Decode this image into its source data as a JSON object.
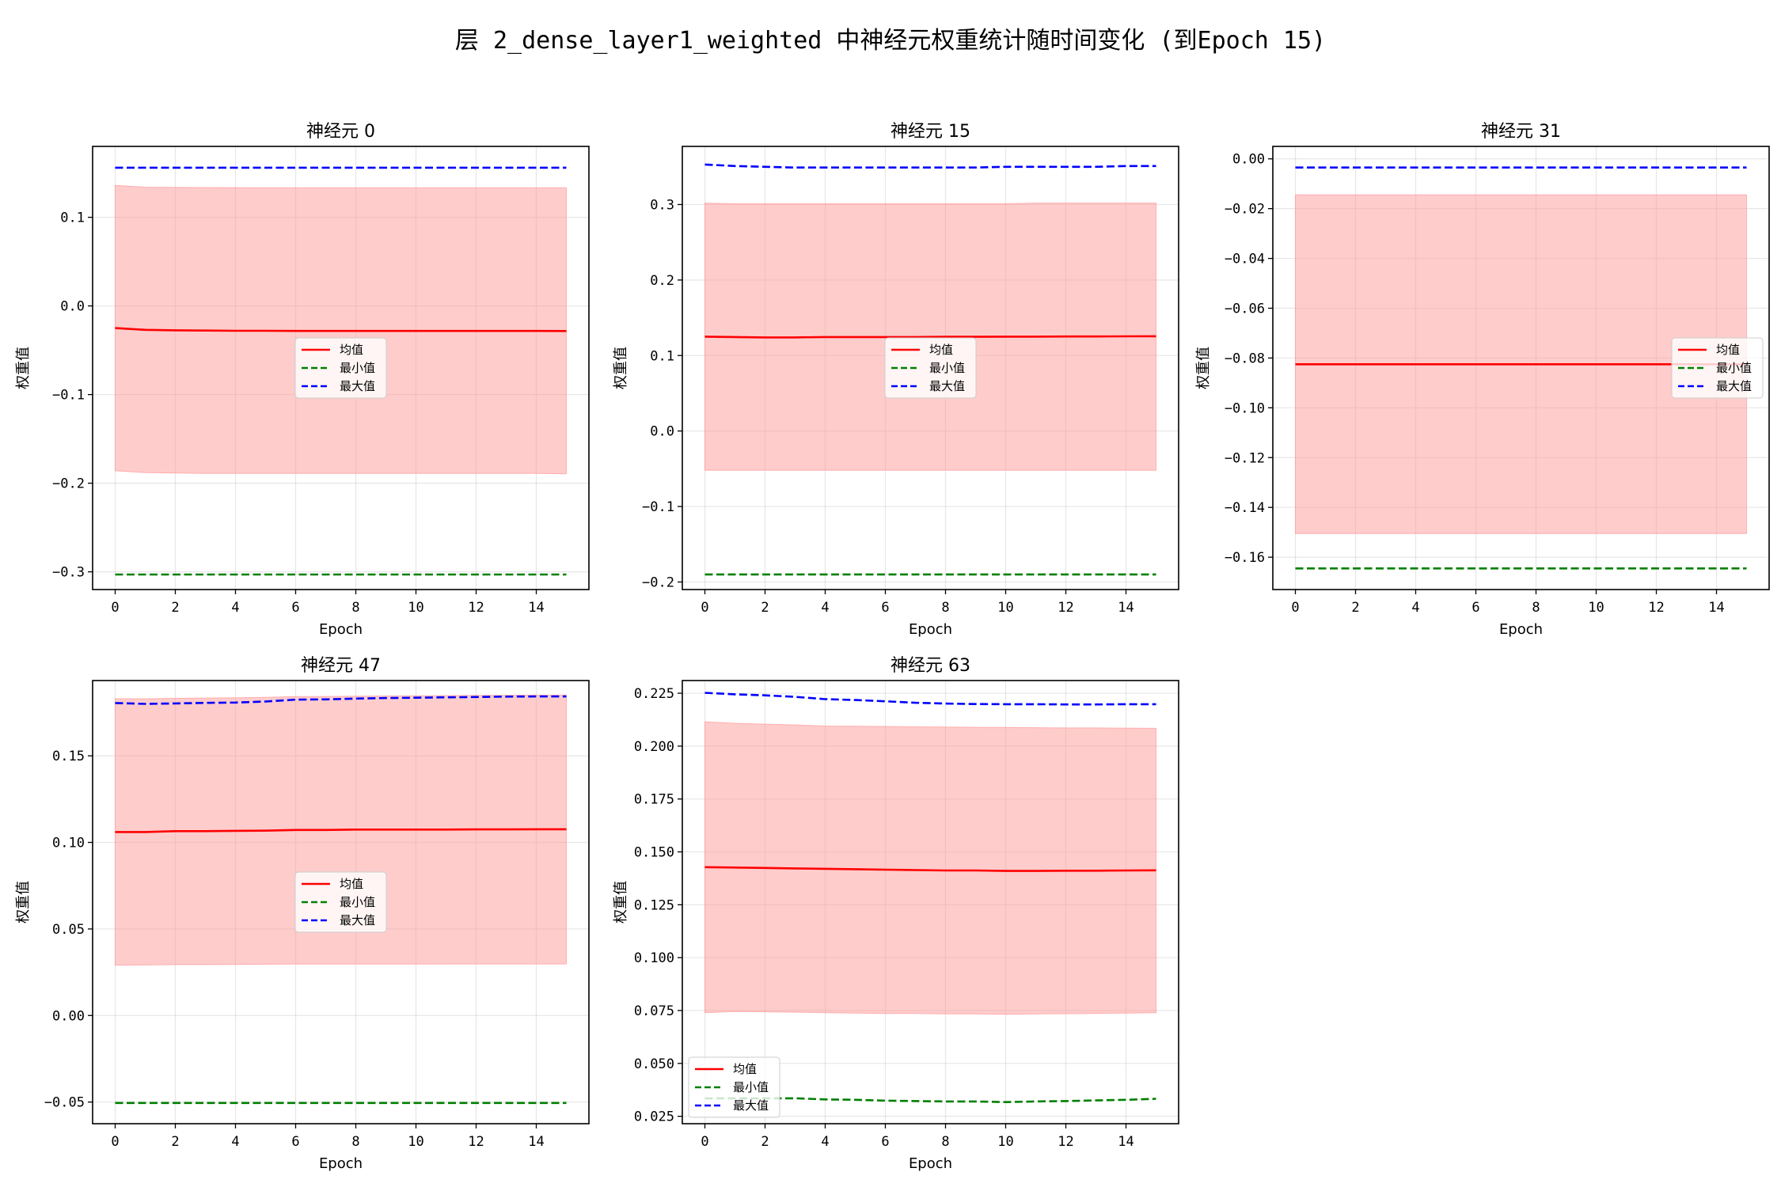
{
  "suptitle": "层 2_dense_layer1_weighted 中神经元权重统计随时间变化 (到Epoch 15)",
  "colors": {
    "mean": "#ff0000",
    "min": "#008000",
    "max": "#0000ff",
    "band": "#ff9999"
  },
  "chart_data": [
    {
      "type": "line",
      "title": "神经元 0",
      "xlabel": "Epoch",
      "ylabel": "权重值",
      "x": [
        0,
        1,
        2,
        3,
        4,
        5,
        6,
        7,
        8,
        9,
        10,
        11,
        12,
        13,
        14,
        15
      ],
      "xlim": [
        -0.75,
        15.75
      ],
      "xticks": [
        0,
        2,
        4,
        6,
        8,
        10,
        12,
        14
      ],
      "ylim": [
        -0.32,
        0.18
      ],
      "yticks": [
        -0.3,
        -0.2,
        -0.1,
        0.0,
        0.1
      ],
      "ytick_labels": [
        "−0.3",
        "−0.2",
        "−0.1",
        "0.0",
        "0.1"
      ],
      "grid": true,
      "legend_loc": "center",
      "series": [
        {
          "name": "均值",
          "style": "solid",
          "color": "#ff0000",
          "values": [
            -0.025,
            -0.027,
            -0.0275,
            -0.0278,
            -0.028,
            -0.028,
            -0.0282,
            -0.0282,
            -0.0282,
            -0.0282,
            -0.0282,
            -0.0282,
            -0.0282,
            -0.0282,
            -0.0282,
            -0.0283
          ]
        },
        {
          "name": "最小值",
          "style": "dashed",
          "color": "#008000",
          "values": [
            -0.303,
            -0.303,
            -0.303,
            -0.303,
            -0.303,
            -0.303,
            -0.303,
            -0.303,
            -0.303,
            -0.303,
            -0.303,
            -0.303,
            -0.303,
            -0.303,
            -0.303,
            -0.303
          ]
        },
        {
          "name": "最大值",
          "style": "dashed",
          "color": "#0000ff",
          "values": [
            0.156,
            0.156,
            0.156,
            0.156,
            0.156,
            0.156,
            0.156,
            0.156,
            0.156,
            0.156,
            0.156,
            0.156,
            0.156,
            0.156,
            0.156,
            0.156
          ]
        }
      ],
      "band": {
        "upper": [
          0.136,
          0.134,
          0.1338,
          0.1336,
          0.1335,
          0.1334,
          0.1334,
          0.1334,
          0.1334,
          0.1334,
          0.1334,
          0.1334,
          0.1334,
          0.1334,
          0.1334,
          0.1333
        ],
        "lower": [
          -0.186,
          -0.188,
          -0.1885,
          -0.189,
          -0.189,
          -0.189,
          -0.189,
          -0.189,
          -0.189,
          -0.189,
          -0.189,
          -0.189,
          -0.189,
          -0.189,
          -0.189,
          -0.1895
        ]
      }
    },
    {
      "type": "line",
      "title": "神经元 15",
      "xlabel": "Epoch",
      "ylabel": "权重值",
      "x": [
        0,
        1,
        2,
        3,
        4,
        5,
        6,
        7,
        8,
        9,
        10,
        11,
        12,
        13,
        14,
        15
      ],
      "xlim": [
        -0.75,
        15.75
      ],
      "xticks": [
        0,
        2,
        4,
        6,
        8,
        10,
        12,
        14
      ],
      "ylim": [
        -0.21,
        0.377
      ],
      "yticks": [
        -0.2,
        -0.1,
        0.0,
        0.1,
        0.2,
        0.3
      ],
      "ytick_labels": [
        "−0.2",
        "−0.1",
        "0.0",
        "0.1",
        "0.2",
        "0.3"
      ],
      "grid": true,
      "legend_loc": "center",
      "series": [
        {
          "name": "均值",
          "style": "solid",
          "color": "#ff0000",
          "values": [
            0.125,
            0.1245,
            0.124,
            0.124,
            0.1245,
            0.1245,
            0.1245,
            0.1245,
            0.1248,
            0.1248,
            0.125,
            0.125,
            0.1252,
            0.1252,
            0.1254,
            0.1255
          ]
        },
        {
          "name": "最小值",
          "style": "dashed",
          "color": "#008000",
          "values": [
            -0.19,
            -0.19,
            -0.19,
            -0.19,
            -0.19,
            -0.19,
            -0.19,
            -0.19,
            -0.19,
            -0.19,
            -0.19,
            -0.19,
            -0.19,
            -0.19,
            -0.19,
            -0.19
          ]
        },
        {
          "name": "最大值",
          "style": "dashed",
          "color": "#0000ff",
          "values": [
            0.353,
            0.351,
            0.35,
            0.349,
            0.349,
            0.349,
            0.349,
            0.349,
            0.349,
            0.349,
            0.35,
            0.35,
            0.35,
            0.35,
            0.351,
            0.351
          ]
        }
      ],
      "band": {
        "upper": [
          0.302,
          0.301,
          0.301,
          0.301,
          0.301,
          0.301,
          0.301,
          0.301,
          0.301,
          0.301,
          0.301,
          0.302,
          0.302,
          0.302,
          0.302,
          0.302
        ],
        "lower": [
          -0.052,
          -0.052,
          -0.052,
          -0.052,
          -0.052,
          -0.052,
          -0.052,
          -0.052,
          -0.052,
          -0.052,
          -0.052,
          -0.052,
          -0.052,
          -0.052,
          -0.052,
          -0.052
        ]
      }
    },
    {
      "type": "line",
      "title": "神经元 31",
      "xlabel": "Epoch",
      "ylabel": "权重值",
      "x": [
        0,
        1,
        2,
        3,
        4,
        5,
        6,
        7,
        8,
        9,
        10,
        11,
        12,
        13,
        14,
        15
      ],
      "xlim": [
        -0.75,
        15.75
      ],
      "xticks": [
        0,
        2,
        4,
        6,
        8,
        10,
        12,
        14
      ],
      "ylim": [
        -0.173,
        0.005
      ],
      "yticks": [
        -0.16,
        -0.14,
        -0.12,
        -0.1,
        -0.08,
        -0.06,
        -0.04,
        -0.02,
        0.0
      ],
      "ytick_labels": [
        "−0.16",
        "−0.14",
        "−0.12",
        "−0.10",
        "−0.08",
        "−0.06",
        "−0.04",
        "−0.02",
        "0.00"
      ],
      "grid": true,
      "legend_loc": "center right",
      "series": [
        {
          "name": "均值",
          "style": "solid",
          "color": "#ff0000",
          "values": [
            -0.0825,
            -0.0825,
            -0.0825,
            -0.0825,
            -0.0825,
            -0.0825,
            -0.0825,
            -0.0825,
            -0.0825,
            -0.0825,
            -0.0825,
            -0.0825,
            -0.0825,
            -0.0825,
            -0.0825,
            -0.0825
          ]
        },
        {
          "name": "最小值",
          "style": "dashed",
          "color": "#008000",
          "values": [
            -0.1645,
            -0.1645,
            -0.1645,
            -0.1645,
            -0.1645,
            -0.1645,
            -0.1645,
            -0.1645,
            -0.1645,
            -0.1645,
            -0.1645,
            -0.1645,
            -0.1645,
            -0.1645,
            -0.1645,
            -0.1645
          ]
        },
        {
          "name": "最大值",
          "style": "dashed",
          "color": "#0000ff",
          "values": [
            -0.0035,
            -0.0035,
            -0.0035,
            -0.0035,
            -0.0035,
            -0.0035,
            -0.0035,
            -0.0035,
            -0.0035,
            -0.0035,
            -0.0035,
            -0.0035,
            -0.0035,
            -0.0035,
            -0.0035,
            -0.0035
          ]
        }
      ],
      "band": {
        "upper": [
          -0.0145,
          -0.0145,
          -0.0145,
          -0.0145,
          -0.0145,
          -0.0145,
          -0.0145,
          -0.0145,
          -0.0145,
          -0.0145,
          -0.0145,
          -0.0145,
          -0.0145,
          -0.0145,
          -0.0145,
          -0.0145
        ],
        "lower": [
          -0.1505,
          -0.1505,
          -0.1505,
          -0.1505,
          -0.1505,
          -0.1505,
          -0.1505,
          -0.1505,
          -0.1505,
          -0.1505,
          -0.1505,
          -0.1505,
          -0.1505,
          -0.1505,
          -0.1505,
          -0.1505
        ]
      }
    },
    {
      "type": "line",
      "title": "神经元 47",
      "xlabel": "Epoch",
      "ylabel": "权重值",
      "x": [
        0,
        1,
        2,
        3,
        4,
        5,
        6,
        7,
        8,
        9,
        10,
        11,
        12,
        13,
        14,
        15
      ],
      "xlim": [
        -0.75,
        15.75
      ],
      "xticks": [
        0,
        2,
        4,
        6,
        8,
        10,
        12,
        14
      ],
      "ylim": [
        -0.0625,
        0.1935
      ],
      "yticks": [
        -0.05,
        0.0,
        0.05,
        0.1,
        0.15
      ],
      "ytick_labels": [
        "−0.05",
        "0.00",
        "0.05",
        "0.10",
        "0.15"
      ],
      "grid": true,
      "legend_loc": "center",
      "series": [
        {
          "name": "均值",
          "style": "solid",
          "color": "#ff0000",
          "values": [
            0.106,
            0.106,
            0.1065,
            0.1065,
            0.1067,
            0.1068,
            0.1072,
            0.1072,
            0.1074,
            0.1074,
            0.1074,
            0.1074,
            0.1075,
            0.1075,
            0.1076,
            0.1076
          ]
        },
        {
          "name": "最小值",
          "style": "dashed",
          "color": "#008000",
          "values": [
            -0.0505,
            -0.0505,
            -0.0505,
            -0.0505,
            -0.0505,
            -0.0505,
            -0.0505,
            -0.0505,
            -0.0505,
            -0.0505,
            -0.0505,
            -0.0505,
            -0.0505,
            -0.0505,
            -0.0505,
            -0.0505
          ]
        },
        {
          "name": "最大值",
          "style": "dashed",
          "color": "#0000ff",
          "values": [
            0.1805,
            0.18,
            0.1803,
            0.1806,
            0.1808,
            0.1814,
            0.1825,
            0.1826,
            0.1831,
            0.1834,
            0.1836,
            0.1838,
            0.184,
            0.1842,
            0.1843,
            0.1843
          ]
        }
      ],
      "band": {
        "upper": [
          0.183,
          0.183,
          0.1832,
          0.1834,
          0.1836,
          0.1838,
          0.1842,
          0.1843,
          0.1845,
          0.1846,
          0.1847,
          0.1848,
          0.1849,
          0.185,
          0.1851,
          0.1851
        ],
        "lower": [
          0.029,
          0.0292,
          0.0294,
          0.0294,
          0.0295,
          0.0296,
          0.0297,
          0.0297,
          0.0297,
          0.0297,
          0.0297,
          0.0298,
          0.0298,
          0.0298,
          0.0298,
          0.0298
        ]
      }
    },
    {
      "type": "line",
      "title": "神经元 63",
      "xlabel": "Epoch",
      "ylabel": "权重值",
      "x": [
        0,
        1,
        2,
        3,
        4,
        5,
        6,
        7,
        8,
        9,
        10,
        11,
        12,
        13,
        14,
        15
      ],
      "xlim": [
        -0.75,
        15.75
      ],
      "xticks": [
        0,
        2,
        4,
        6,
        8,
        10,
        12,
        14
      ],
      "ylim": [
        0.0215,
        0.231
      ],
      "yticks": [
        0.025,
        0.05,
        0.075,
        0.1,
        0.125,
        0.15,
        0.175,
        0.2,
        0.225
      ],
      "ytick_labels": [
        "0.025",
        "0.050",
        "0.075",
        "0.100",
        "0.125",
        "0.150",
        "0.175",
        "0.200",
        "0.225"
      ],
      "grid": true,
      "legend_loc": "lower left",
      "series": [
        {
          "name": "均值",
          "style": "solid",
          "color": "#ff0000",
          "values": [
            0.1428,
            0.1426,
            0.1424,
            0.1422,
            0.142,
            0.1418,
            0.1416,
            0.1414,
            0.1412,
            0.1412,
            0.141,
            0.141,
            0.1411,
            0.1411,
            0.1412,
            0.1413
          ]
        },
        {
          "name": "最小值",
          "style": "dashed",
          "color": "#008000",
          "values": [
            0.0335,
            0.0335,
            0.0335,
            0.0335,
            0.033,
            0.0328,
            0.0324,
            0.0322,
            0.032,
            0.032,
            0.0317,
            0.032,
            0.0322,
            0.0325,
            0.0328,
            0.0333
          ]
        },
        {
          "name": "最大值",
          "style": "dashed",
          "color": "#0000ff",
          "values": [
            0.2252,
            0.2245,
            0.224,
            0.2233,
            0.2222,
            0.2218,
            0.2212,
            0.2205,
            0.2201,
            0.2199,
            0.2198,
            0.2198,
            0.2197,
            0.2197,
            0.2198,
            0.2198
          ]
        }
      ],
      "band": {
        "upper": [
          0.2115,
          0.2108,
          0.2104,
          0.21,
          0.2095,
          0.2094,
          0.2093,
          0.2091,
          0.209,
          0.2089,
          0.2088,
          0.2087,
          0.2086,
          0.2086,
          0.2085,
          0.2084
        ],
        "lower": [
          0.074,
          0.0745,
          0.0744,
          0.0742,
          0.074,
          0.0738,
          0.0736,
          0.0736,
          0.0734,
          0.0734,
          0.0732,
          0.0734,
          0.0735,
          0.0736,
          0.0738,
          0.074
        ]
      }
    }
  ]
}
